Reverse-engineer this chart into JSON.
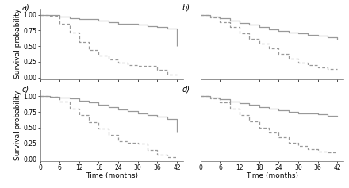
{
  "background_color": "#ffffff",
  "panels": [
    "a",
    "b",
    "c",
    "d"
  ],
  "xlim": [
    0,
    44
  ],
  "ylim": [
    -0.03,
    1.1
  ],
  "xticks": [
    0,
    6,
    12,
    18,
    24,
    30,
    36,
    42
  ],
  "yticks": [
    0.0,
    0.25,
    0.5,
    0.75,
    1.0
  ],
  "xlabel": "Time (months)",
  "ylabel": "Survival probability",
  "label_fontsize": 6.5,
  "tick_fontsize": 5.5,
  "panel_label_fontsize": 7,
  "curves": {
    "a": {
      "solid": {
        "x": [
          0,
          6,
          6,
          9,
          9,
          12,
          12,
          18,
          18,
          21,
          21,
          24,
          24,
          30,
          30,
          33,
          33,
          36,
          36,
          39,
          39,
          42,
          42
        ],
        "y": [
          1.0,
          1.0,
          0.97,
          0.97,
          0.95,
          0.95,
          0.93,
          0.93,
          0.91,
          0.91,
          0.88,
          0.88,
          0.86,
          0.86,
          0.84,
          0.84,
          0.82,
          0.82,
          0.8,
          0.8,
          0.78,
          0.78,
          0.5
        ]
      },
      "dashed": {
        "x": [
          0,
          3,
          3,
          6,
          6,
          9,
          9,
          12,
          12,
          15,
          15,
          18,
          18,
          21,
          21,
          24,
          24,
          27,
          27,
          30,
          30,
          36,
          36,
          39,
          39,
          42
        ],
        "y": [
          1.0,
          1.0,
          0.98,
          0.98,
          0.86,
          0.86,
          0.72,
          0.72,
          0.56,
          0.56,
          0.44,
          0.44,
          0.35,
          0.35,
          0.28,
          0.28,
          0.24,
          0.24,
          0.2,
          0.2,
          0.18,
          0.18,
          0.12,
          0.12,
          0.05,
          0.05
        ]
      }
    },
    "b": {
      "solid": {
        "x": [
          0,
          3,
          3,
          6,
          6,
          9,
          9,
          12,
          12,
          15,
          15,
          18,
          18,
          21,
          21,
          24,
          24,
          27,
          27,
          30,
          30,
          33,
          33,
          36,
          36,
          39,
          39,
          42,
          42
        ],
        "y": [
          1.0,
          1.0,
          0.97,
          0.97,
          0.94,
          0.94,
          0.91,
          0.91,
          0.87,
          0.87,
          0.84,
          0.84,
          0.8,
          0.8,
          0.77,
          0.77,
          0.74,
          0.74,
          0.72,
          0.72,
          0.7,
          0.7,
          0.68,
          0.68,
          0.66,
          0.66,
          0.64,
          0.64,
          0.6
        ]
      },
      "dashed": {
        "x": [
          0,
          3,
          3,
          6,
          6,
          9,
          9,
          12,
          12,
          15,
          15,
          18,
          18,
          21,
          21,
          24,
          24,
          27,
          27,
          30,
          30,
          33,
          33,
          36,
          36,
          39,
          39,
          42
        ],
        "y": [
          1.0,
          1.0,
          0.96,
          0.96,
          0.88,
          0.88,
          0.8,
          0.8,
          0.7,
          0.7,
          0.62,
          0.62,
          0.54,
          0.54,
          0.46,
          0.46,
          0.38,
          0.38,
          0.3,
          0.3,
          0.24,
          0.24,
          0.2,
          0.2,
          0.16,
          0.16,
          0.13,
          0.13
        ]
      }
    },
    "c": {
      "solid": {
        "x": [
          0,
          3,
          3,
          6,
          6,
          9,
          9,
          12,
          12,
          15,
          15,
          18,
          18,
          21,
          21,
          24,
          24,
          27,
          27,
          30,
          30,
          33,
          33,
          36,
          36,
          39,
          39,
          42,
          42
        ],
        "y": [
          1.0,
          1.0,
          0.99,
          0.99,
          0.98,
          0.98,
          0.96,
          0.96,
          0.93,
          0.93,
          0.9,
          0.9,
          0.86,
          0.86,
          0.83,
          0.83,
          0.79,
          0.79,
          0.76,
          0.76,
          0.73,
          0.73,
          0.7,
          0.7,
          0.67,
          0.67,
          0.63,
          0.63,
          0.42
        ]
      },
      "dashed": {
        "x": [
          0,
          3,
          3,
          6,
          6,
          9,
          9,
          12,
          12,
          15,
          15,
          18,
          18,
          21,
          21,
          24,
          24,
          27,
          27,
          30,
          30,
          33,
          33,
          36,
          36,
          39,
          39,
          42
        ],
        "y": [
          1.0,
          1.0,
          0.99,
          0.99,
          0.91,
          0.91,
          0.8,
          0.8,
          0.7,
          0.7,
          0.58,
          0.58,
          0.48,
          0.48,
          0.38,
          0.38,
          0.28,
          0.28,
          0.26,
          0.26,
          0.24,
          0.24,
          0.14,
          0.14,
          0.07,
          0.07,
          0.03,
          0.03
        ]
      }
    },
    "d": {
      "solid": {
        "x": [
          0,
          3,
          3,
          6,
          6,
          9,
          9,
          12,
          12,
          15,
          15,
          18,
          18,
          21,
          21,
          24,
          24,
          27,
          27,
          30,
          30,
          36,
          36,
          39,
          39,
          42,
          42
        ],
        "y": [
          1.0,
          1.0,
          0.98,
          0.98,
          0.95,
          0.95,
          0.92,
          0.92,
          0.89,
          0.89,
          0.86,
          0.86,
          0.83,
          0.83,
          0.8,
          0.8,
          0.77,
          0.77,
          0.75,
          0.75,
          0.73,
          0.73,
          0.71,
          0.71,
          0.69,
          0.69,
          0.67
        ]
      },
      "dashed": {
        "x": [
          0,
          3,
          3,
          6,
          6,
          9,
          9,
          12,
          12,
          15,
          15,
          18,
          18,
          21,
          21,
          24,
          24,
          27,
          27,
          30,
          30,
          33,
          33,
          36,
          36,
          39,
          39,
          42
        ],
        "y": [
          1.0,
          1.0,
          0.97,
          0.97,
          0.9,
          0.9,
          0.8,
          0.8,
          0.7,
          0.7,
          0.6,
          0.6,
          0.5,
          0.5,
          0.42,
          0.42,
          0.34,
          0.34,
          0.26,
          0.26,
          0.2,
          0.2,
          0.16,
          0.16,
          0.12,
          0.12,
          0.1,
          0.1
        ]
      }
    }
  },
  "line_color": "#999999",
  "line_width": 0.9,
  "dash_pattern": [
    3,
    2
  ]
}
